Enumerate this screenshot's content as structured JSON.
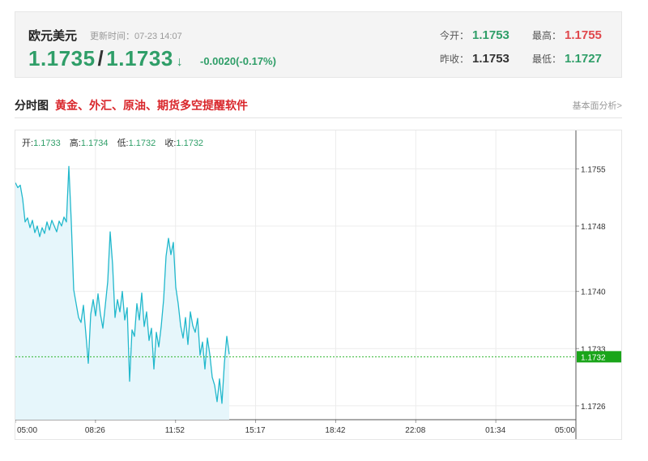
{
  "quote": {
    "name": "欧元美元",
    "update_label": "更新时间：",
    "update_time": "07-23 14:07",
    "bid": "1.1735",
    "ask": "1.1733",
    "change": "-0.0020(-0.17%)",
    "stats": {
      "open_label": "今开：",
      "open": "1.1753",
      "high_label": "最高：",
      "high": "1.1755",
      "prev_close_label": "昨收：",
      "prev_close": "1.1753",
      "low_label": "最低：",
      "low": "1.1727"
    }
  },
  "section": {
    "title": "分时图",
    "promo_link": "黄金、外汇、原油、期货多空提醒软件",
    "right_link": "基本面分析>"
  },
  "ohlc": {
    "open_label": "开:",
    "open": "1.1733",
    "high_label": "高:",
    "high": "1.1734",
    "low_label": "低:",
    "low": "1.1732",
    "close_label": "收:",
    "close": "1.1732"
  },
  "colors": {
    "up": "#e0474c",
    "down": "#2f9e68",
    "line": "#21b8cc",
    "current_price_badge": "#1aa51a"
  },
  "chart_data": {
    "type": "area",
    "x_tick_labels": [
      "05:00",
      "08:26",
      "11:52",
      "15:17",
      "18:42",
      "22:08",
      "01:34",
      "05:00"
    ],
    "y_tick_labels": [
      "1.1755",
      "1.1748",
      "1.1740",
      "1.1733",
      "1.1726"
    ],
    "y_ticks": [
      1.1755,
      1.1748,
      1.174,
      1.1733,
      1.1726
    ],
    "ylim": [
      1.17243,
      1.17597
    ],
    "current_price": 1.1732,
    "current_price_label": "1.1732",
    "grid": true,
    "x": [
      0,
      3,
      6,
      9,
      12,
      15,
      18,
      21,
      24,
      27,
      30,
      33,
      36,
      39,
      42,
      45,
      48,
      51,
      54,
      57,
      60,
      63,
      66,
      69,
      72,
      75,
      78,
      81,
      84,
      87,
      90,
      93,
      96,
      99,
      102,
      105,
      108,
      111,
      114,
      117,
      120,
      123,
      126,
      129,
      132,
      135,
      138,
      141,
      144,
      147,
      150,
      153,
      156,
      159,
      162,
      165,
      168,
      171,
      174,
      177,
      180,
      183,
      186,
      189,
      192,
      195,
      198,
      201,
      204,
      207,
      210,
      213,
      216,
      219,
      222,
      225,
      228,
      231,
      234,
      237,
      240,
      243,
      246,
      249,
      252,
      255,
      258,
      261,
      264
    ],
    "values": [
      1.17533,
      1.17527,
      1.1753,
      1.17513,
      1.17485,
      1.1749,
      1.17478,
      1.17487,
      1.17472,
      1.1748,
      1.17467,
      1.17478,
      1.17471,
      1.17485,
      1.17475,
      1.17487,
      1.1748,
      1.17473,
      1.17486,
      1.1748,
      1.17491,
      1.17485,
      1.17553,
      1.17485,
      1.17402,
      1.17385,
      1.17368,
      1.17362,
      1.17383,
      1.17348,
      1.17312,
      1.17372,
      1.1739,
      1.1737,
      1.17397,
      1.17372,
      1.17355,
      1.17383,
      1.17412,
      1.17473,
      1.17433,
      1.17368,
      1.1739,
      1.17375,
      1.174,
      1.17365,
      1.1738,
      1.1729,
      1.17353,
      1.17345,
      1.17385,
      1.17365,
      1.17398,
      1.17357,
      1.17375,
      1.1734,
      1.17355,
      1.17305,
      1.1735,
      1.17332,
      1.17357,
      1.1739,
      1.17443,
      1.17465,
      1.17445,
      1.1746,
      1.17405,
      1.17385,
      1.17358,
      1.17343,
      1.17368,
      1.17335,
      1.17375,
      1.17358,
      1.1735,
      1.17367,
      1.17322,
      1.17338,
      1.17305,
      1.17343,
      1.17323,
      1.17295,
      1.17285,
      1.17265,
      1.17293,
      1.17263,
      1.17312,
      1.17345,
      1.17323
    ]
  }
}
